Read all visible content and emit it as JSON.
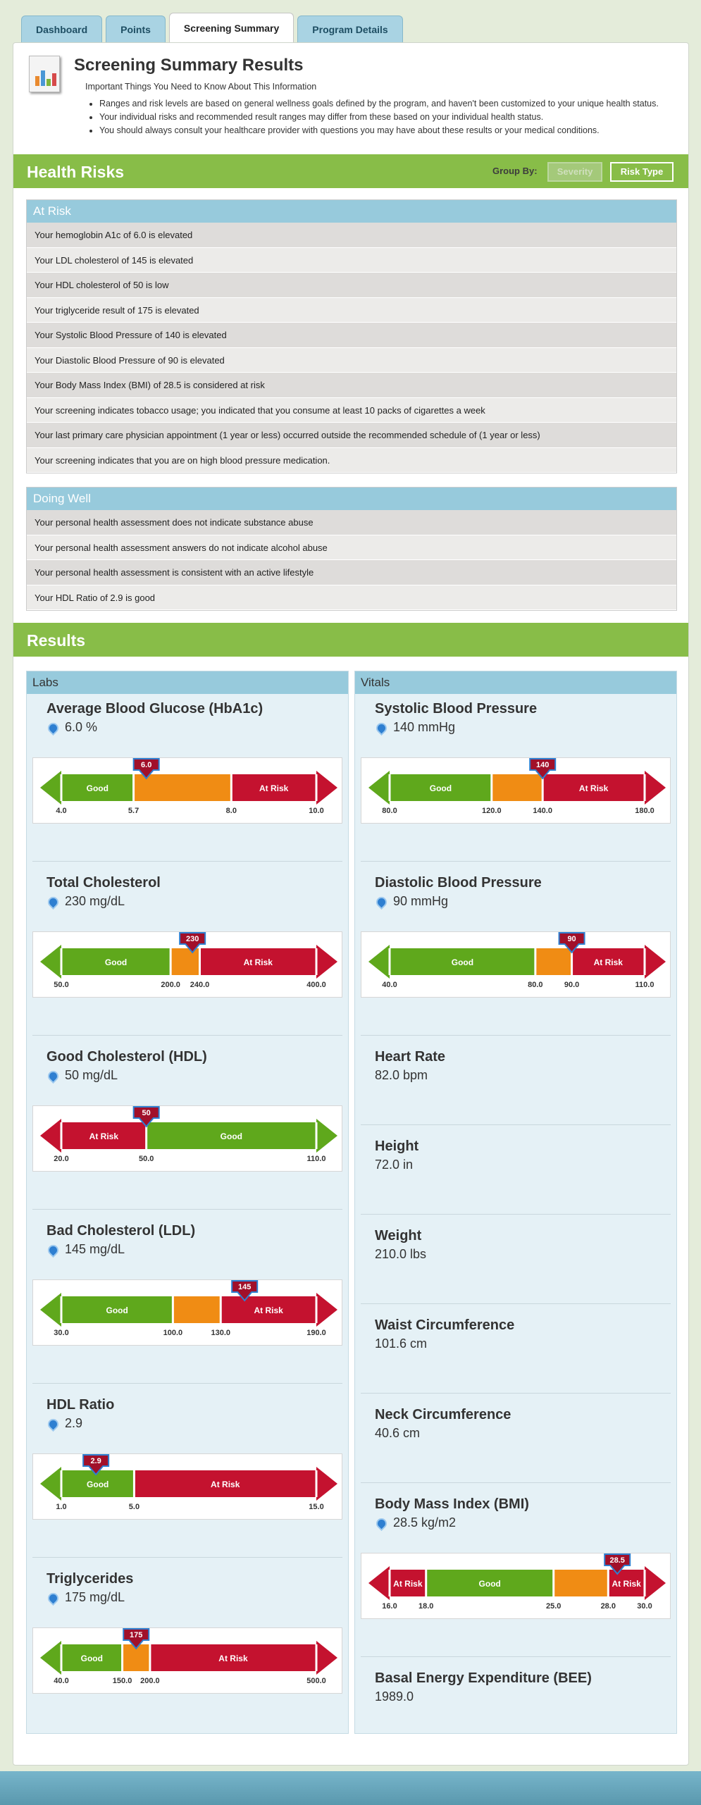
{
  "tabs": [
    "Dashboard",
    "Points",
    "Screening Summary",
    "Program Details"
  ],
  "summary": {
    "title": "Screening Summary Results",
    "subtitle": "Important Things You Need to Know About This Information",
    "bullets": [
      "Ranges and risk levels are based on general wellness goals defined by the program, and haven't been customized to your unique health status.",
      "Your individual risks and recommended result ranges may differ from these based on your individual health status.",
      "You should always consult your healthcare provider with questions you may have about these results or your medical conditions."
    ]
  },
  "health_risks": {
    "title": "Health Risks",
    "group_by_label": "Group By:",
    "severity_button": "Severity",
    "risk_type_button": "Risk Type",
    "at_risk_header": "At Risk",
    "at_risk": [
      "Your hemoglobin A1c of 6.0  is elevated",
      "Your LDL cholesterol of 145 is elevated",
      "Your HDL cholesterol of 50 is low",
      "Your triglyceride result of 175 is elevated",
      "Your Systolic Blood Pressure of 140  is elevated",
      "Your Diastolic Blood Pressure of 90 is elevated",
      "Your Body Mass Index (BMI) of 28.5  is considered at risk",
      "Your screening indicates tobacco usage; you indicated that you consume at least 10 packs of cigarettes a week",
      "Your last primary care physician appointment (1 year or less) occurred outside the recommended  schedule of (1 year or less)",
      "Your screening indicates that you are on high blood pressure medication."
    ],
    "doing_well_header": "Doing Well",
    "doing_well": [
      "Your personal health assessment does not indicate substance abuse",
      "Your personal health assessment answers do not indicate alcohol abuse",
      "Your personal health assessment is consistent with an active lifestyle",
      "Your HDL Ratio of 2.9 is good"
    ]
  },
  "results": {
    "title": "Results",
    "labs_header": "Labs",
    "vitals_header": "Vitals",
    "labs": [
      {
        "name": "Average Blood Glucose (HbA1c)",
        "value": "6.0 %",
        "pin": true,
        "gauge": {
          "min": 4.0,
          "max": 10.0,
          "marker": 6.0,
          "marker_label": "6.0",
          "bounds": [
            5.7,
            8.0
          ],
          "ticks": [
            "4.0",
            "5.7",
            "8.0",
            "10.0"
          ],
          "zones": [
            {
              "label": "Good",
              "color": "#5fa81c"
            },
            {
              "label": "",
              "color": "#f08c14"
            },
            {
              "label": "At Risk",
              "color": "#c4122f"
            }
          ]
        }
      },
      {
        "name": "Total Cholesterol",
        "value": "230 mg/dL",
        "pin": true,
        "gauge": {
          "min": 50.0,
          "max": 400.0,
          "marker": 230,
          "marker_label": "230",
          "bounds": [
            200.0,
            240.0
          ],
          "ticks": [
            "50.0",
            "200.0",
            "240.0",
            "400.0"
          ],
          "zones": [
            {
              "label": "Good",
              "color": "#5fa81c"
            },
            {
              "label": "",
              "color": "#f08c14"
            },
            {
              "label": "At Risk",
              "color": "#c4122f"
            }
          ]
        }
      },
      {
        "name": "Good Cholesterol (HDL)",
        "value": "50 mg/dL",
        "pin": true,
        "gauge": {
          "min": 20.0,
          "max": 110.0,
          "marker": 50,
          "marker_label": "50",
          "bounds": [
            50.0
          ],
          "ticks": [
            "20.0",
            "50.0",
            "110.0"
          ],
          "zones": [
            {
              "label": "At Risk",
              "color": "#c4122f"
            },
            {
              "label": "Good",
              "color": "#5fa81c"
            }
          ]
        }
      },
      {
        "name": "Bad Cholesterol (LDL)",
        "value": "145 mg/dL",
        "pin": true,
        "gauge": {
          "min": 30.0,
          "max": 190.0,
          "marker": 145,
          "marker_label": "145",
          "bounds": [
            100.0,
            130.0
          ],
          "ticks": [
            "30.0",
            "100.0",
            "130.0",
            "190.0"
          ],
          "zones": [
            {
              "label": "Good",
              "color": "#5fa81c"
            },
            {
              "label": "",
              "color": "#f08c14"
            },
            {
              "label": "At Risk",
              "color": "#c4122f"
            }
          ]
        }
      },
      {
        "name": "HDL Ratio",
        "value": "2.9",
        "pin": true,
        "gauge": {
          "min": 1.0,
          "max": 15.0,
          "marker": 2.9,
          "marker_label": "2.9",
          "bounds": [
            5.0
          ],
          "ticks": [
            "1.0",
            "5.0",
            "15.0"
          ],
          "zones": [
            {
              "label": "Good",
              "color": "#5fa81c"
            },
            {
              "label": "At Risk",
              "color": "#c4122f"
            }
          ]
        }
      },
      {
        "name": "Triglycerides",
        "value": "175 mg/dL",
        "pin": true,
        "gauge": {
          "min": 40.0,
          "max": 500.0,
          "marker": 175,
          "marker_label": "175",
          "bounds": [
            150.0,
            200.0
          ],
          "ticks": [
            "40.0",
            "150.0",
            "200.0",
            "500.0"
          ],
          "zones": [
            {
              "label": "Good",
              "color": "#5fa81c"
            },
            {
              "label": "",
              "color": "#f08c14"
            },
            {
              "label": "At Risk",
              "color": "#c4122f"
            }
          ]
        }
      }
    ],
    "vitals": [
      {
        "name": "Systolic Blood Pressure",
        "value": "140 mmHg",
        "pin": true,
        "gauge": {
          "min": 80.0,
          "max": 180.0,
          "marker": 140,
          "marker_label": "140",
          "bounds": [
            120.0,
            140.0
          ],
          "ticks": [
            "80.0",
            "120.0",
            "140.0",
            "180.0"
          ],
          "zones": [
            {
              "label": "Good",
              "color": "#5fa81c"
            },
            {
              "label": "",
              "color": "#f08c14"
            },
            {
              "label": "At Risk",
              "color": "#c4122f"
            }
          ]
        }
      },
      {
        "name": "Diastolic Blood Pressure",
        "value": "90 mmHg",
        "pin": true,
        "gauge": {
          "min": 40.0,
          "max": 110.0,
          "marker": 90,
          "marker_label": "90",
          "bounds": [
            80.0,
            90.0
          ],
          "ticks": [
            "40.0",
            "80.0",
            "90.0",
            "110.0"
          ],
          "zones": [
            {
              "label": "Good",
              "color": "#5fa81c"
            },
            {
              "label": "",
              "color": "#f08c14"
            },
            {
              "label": "At Risk",
              "color": "#c4122f"
            }
          ]
        }
      },
      {
        "name": "Heart Rate",
        "value": "82.0 bpm",
        "pin": false
      },
      {
        "name": "Height",
        "value": "72.0 in",
        "pin": false
      },
      {
        "name": "Weight",
        "value": "210.0 lbs",
        "pin": false
      },
      {
        "name": "Waist Circumference",
        "value": "101.6 cm",
        "pin": false
      },
      {
        "name": "Neck Circumference",
        "value": "40.6 cm",
        "pin": false
      },
      {
        "name": "Body Mass Index (BMI)",
        "value": "28.5 kg/m2",
        "pin": true,
        "gauge": {
          "min": 16.0,
          "max": 30.0,
          "marker": 28.5,
          "marker_label": "28.5",
          "bounds": [
            18.0,
            25.0,
            28.0
          ],
          "ticks": [
            "16.0",
            "18.0",
            "25.0",
            "28.0",
            "30.0"
          ],
          "zones": [
            {
              "label": "At Risk",
              "color": "#c4122f"
            },
            {
              "label": "Good",
              "color": "#5fa81c"
            },
            {
              "label": "",
              "color": "#f08c14"
            },
            {
              "label": "At Risk",
              "color": "#c4122f"
            }
          ]
        }
      },
      {
        "name": "Basal Energy Expenditure (BEE)",
        "value": "1989.0",
        "pin": false
      }
    ]
  },
  "colors": {
    "green": "#88bd48",
    "blue_header": "#97cadc",
    "marker": "#a1102a",
    "good": "#5fa81c",
    "warn": "#f08c14",
    "risk": "#c4122f"
  }
}
